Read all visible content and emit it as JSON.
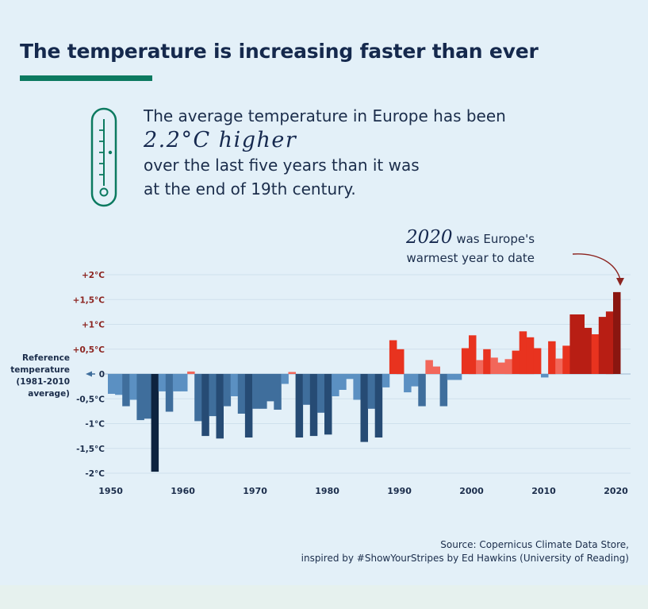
{
  "header": {
    "title": "The temperature is increasing faster than ever"
  },
  "lead": {
    "line1": "The average temperature in Europe has been",
    "highlight": "2.2°C higher",
    "line3": "over the last five years than it was",
    "line4": "at the end of 19th century."
  },
  "callout": {
    "year": "2020",
    "text1": " was Europe's",
    "text2": "warmest year to date"
  },
  "reference_label": [
    "Reference",
    "temperature",
    "(1981-2010",
    "average)"
  ],
  "source": {
    "line1": "Source: Copernicus Climate Data Store,",
    "line2": "inspired by #ShowYourStripes by Ed Hawkins (University of Reading)"
  },
  "chart_data": {
    "type": "bar",
    "title": "",
    "xlabel": "",
    "ylabel": "",
    "ylim": [
      -2,
      2
    ],
    "x_ticks": [
      "1950",
      "1960",
      "1970",
      "1980",
      "1990",
      "2000",
      "2010",
      "2020"
    ],
    "y_ticks": [
      "+2°C",
      "+1,5°C",
      "+1°C",
      "+0,5°C",
      "0",
      "-0,5°C",
      "-1°C",
      "-1,5°C",
      "-2°C"
    ],
    "reference_line_label": "0",
    "grid": true,
    "colors": {
      "cold_light": "#5b90c2",
      "cold_mid": "#3f6e9c",
      "cold_dark": "#264b74",
      "cold_darkest": "#0d233f",
      "warm_light": "#f2675a",
      "warm_mid": "#e8331f",
      "warm_dark": "#b81e14",
      "warm_darkest": "#8a1610",
      "thermometer": "#0c7a60"
    },
    "years": [
      1950,
      1951,
      1952,
      1953,
      1954,
      1955,
      1956,
      1957,
      1958,
      1959,
      1960,
      1961,
      1962,
      1963,
      1964,
      1965,
      1966,
      1967,
      1968,
      1969,
      1970,
      1971,
      1972,
      1973,
      1974,
      1975,
      1976,
      1977,
      1978,
      1979,
      1980,
      1981,
      1982,
      1983,
      1984,
      1985,
      1986,
      1987,
      1988,
      1989,
      1990,
      1991,
      1992,
      1993,
      1994,
      1995,
      1996,
      1997,
      1998,
      1999,
      2000,
      2001,
      2002,
      2003,
      2004,
      2005,
      2006,
      2007,
      2008,
      2009,
      2010,
      2011,
      2012,
      2013,
      2014,
      2015,
      2016,
      2017,
      2018,
      2019,
      2020,
      2021
    ],
    "values": [
      -0.4,
      -0.42,
      -0.65,
      -0.52,
      -0.93,
      -0.9,
      -1.97,
      -0.35,
      -0.76,
      -0.35,
      -0.35,
      0.05,
      -0.95,
      -1.25,
      -0.85,
      -1.3,
      -0.65,
      -0.45,
      -0.8,
      -1.28,
      -0.7,
      -0.7,
      -0.55,
      -0.72,
      -0.2,
      0.04,
      -1.28,
      -0.62,
      -1.25,
      -0.78,
      -1.22,
      -0.45,
      -0.32,
      -0.1,
      -0.52,
      -1.37,
      -0.7,
      -1.28,
      -0.27,
      0.68,
      0.5,
      -0.37,
      -0.25,
      -0.65,
      0.28,
      0.15,
      -0.65,
      -0.12,
      -0.12,
      0.52,
      0.78,
      0.28,
      0.5,
      0.33,
      0.23,
      0.3,
      0.47,
      0.86,
      0.74,
      0.52,
      -0.07,
      0.66,
      0.31,
      0.57,
      1.2,
      1.2,
      0.93,
      0.8,
      1.15,
      1.26,
      1.65,
      0.0
    ]
  }
}
